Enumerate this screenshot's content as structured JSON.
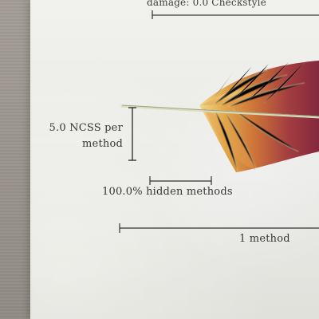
{
  "document": {
    "top_caption": "damage: 0.0 Checkstyle",
    "left_scale_label": "5.0 NCSS per method",
    "hidden_methods_label": "100.0% hidden methods",
    "method_count_label": "1 method"
  },
  "colors": {
    "paper": "#f7f7f3",
    "ink": "#363636",
    "feather_gold": "#d9a03f",
    "feather_orange": "#c96b2f",
    "feather_red": "#8f2435",
    "background": "#9d978f"
  },
  "icons": {
    "visual": "feather-icon"
  }
}
